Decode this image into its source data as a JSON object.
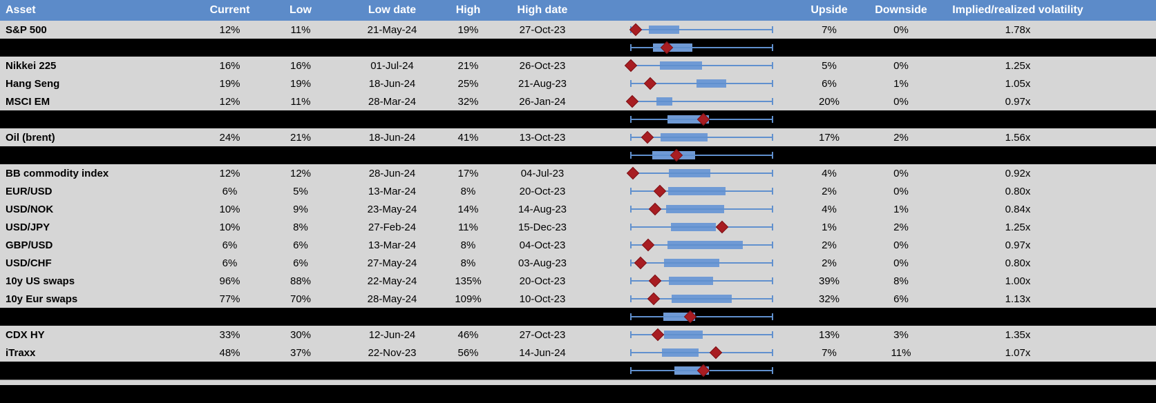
{
  "colors": {
    "header_bg": "#5C8BC9",
    "header_text": "#FFFFFF",
    "row_bg": "#D6D6D6",
    "separator_bg": "#000000",
    "box_fill": "#6F9AD5",
    "whisker": "#6090CE",
    "marker": "#A81D22",
    "text": "#000000"
  },
  "table": {
    "headers": {
      "asset": "Asset",
      "current": "Current",
      "low": "Low",
      "low_date": "Low date",
      "high": "High",
      "high_date": "High date",
      "chart": "",
      "upside": "Upside",
      "downside": "Downside",
      "implied_realized_vol": "Implied/realized volatility"
    },
    "rows": [
      {
        "type": "data",
        "asset": "S&P 500",
        "current": "12%",
        "low": "11%",
        "low_date": "21-May-24",
        "high": "19%",
        "high_date": "27-Oct-23",
        "upside": "7%",
        "downside": "0%",
        "implied_realized_vol": "1.78x"
      },
      {
        "type": "separator",
        "asset": "",
        "current": "",
        "low": "",
        "low_date": "",
        "high": "",
        "high_date": "",
        "upside": "",
        "downside": "",
        "implied_realized_vol": ""
      },
      {
        "type": "data",
        "asset": "Nikkei 225",
        "current": "16%",
        "low": "16%",
        "low_date": "01-Jul-24",
        "high": "21%",
        "high_date": "26-Oct-23",
        "upside": "5%",
        "downside": "0%",
        "implied_realized_vol": "1.25x"
      },
      {
        "type": "data",
        "asset": "Hang Seng",
        "current": "19%",
        "low": "19%",
        "low_date": "18-Jun-24",
        "high": "25%",
        "high_date": "21-Aug-23",
        "upside": "6%",
        "downside": "1%",
        "implied_realized_vol": "1.05x"
      },
      {
        "type": "data",
        "asset": "MSCI EM",
        "current": "12%",
        "low": "11%",
        "low_date": "28-Mar-24",
        "high": "32%",
        "high_date": "26-Jan-24",
        "upside": "20%",
        "downside": "0%",
        "implied_realized_vol": "0.97x"
      },
      {
        "type": "separator",
        "asset": "",
        "current": "",
        "low": "",
        "low_date": "",
        "high": "",
        "high_date": "",
        "upside": "",
        "downside": "",
        "implied_realized_vol": ""
      },
      {
        "type": "data",
        "asset": "Oil (brent)",
        "current": "24%",
        "low": "21%",
        "low_date": "18-Jun-24",
        "high": "41%",
        "high_date": "13-Oct-23",
        "upside": "17%",
        "downside": "2%",
        "implied_realized_vol": "1.56x"
      },
      {
        "type": "separator",
        "asset": "",
        "current": "",
        "low": "",
        "low_date": "",
        "high": "",
        "high_date": "",
        "upside": "",
        "downside": "",
        "implied_realized_vol": ""
      },
      {
        "type": "data",
        "asset": "BB commodity index",
        "current": "12%",
        "low": "12%",
        "low_date": "28-Jun-24",
        "high": "17%",
        "high_date": "04-Jul-23",
        "upside": "4%",
        "downside": "0%",
        "implied_realized_vol": "0.92x"
      },
      {
        "type": "data",
        "asset": "EUR/USD",
        "current": "6%",
        "low": "5%",
        "low_date": "13-Mar-24",
        "high": "8%",
        "high_date": "20-Oct-23",
        "upside": "2%",
        "downside": "0%",
        "implied_realized_vol": "0.80x"
      },
      {
        "type": "data",
        "asset": "USD/NOK",
        "current": "10%",
        "low": "9%",
        "low_date": "23-May-24",
        "high": "14%",
        "high_date": "14-Aug-23",
        "upside": "4%",
        "downside": "1%",
        "implied_realized_vol": "0.84x"
      },
      {
        "type": "data",
        "asset": "USD/JPY",
        "current": "10%",
        "low": "8%",
        "low_date": "27-Feb-24",
        "high": "11%",
        "high_date": "15-Dec-23",
        "upside": "1%",
        "downside": "2%",
        "implied_realized_vol": "1.25x"
      },
      {
        "type": "data",
        "asset": "GBP/USD",
        "current": "6%",
        "low": "6%",
        "low_date": "13-Mar-24",
        "high": "8%",
        "high_date": "04-Oct-23",
        "upside": "2%",
        "downside": "0%",
        "implied_realized_vol": "0.97x"
      },
      {
        "type": "data",
        "asset": "USD/CHF",
        "current": "6%",
        "low": "6%",
        "low_date": "27-May-24",
        "high": "8%",
        "high_date": "03-Aug-23",
        "upside": "2%",
        "downside": "0%",
        "implied_realized_vol": "0.80x"
      },
      {
        "type": "data",
        "asset": "10y US swaps",
        "current": "96%",
        "low": "88%",
        "low_date": "22-May-24",
        "high": "135%",
        "high_date": "20-Oct-23",
        "upside": "39%",
        "downside": "8%",
        "implied_realized_vol": "1.00x"
      },
      {
        "type": "data",
        "asset": "10y Eur swaps",
        "current": "77%",
        "low": "70%",
        "low_date": "28-May-24",
        "high": "109%",
        "high_date": "10-Oct-23",
        "upside": "32%",
        "downside": "6%",
        "implied_realized_vol": "1.13x"
      },
      {
        "type": "separator",
        "asset": "",
        "current": "",
        "low": "",
        "low_date": "",
        "high": "",
        "high_date": "",
        "upside": "",
        "downside": "",
        "implied_realized_vol": ""
      },
      {
        "type": "data",
        "asset": "CDX HY",
        "current": "33%",
        "low": "30%",
        "low_date": "12-Jun-24",
        "high": "46%",
        "high_date": "27-Oct-23",
        "upside": "13%",
        "downside": "3%",
        "implied_realized_vol": "1.35x"
      },
      {
        "type": "data",
        "asset": "iTraxx",
        "current": "48%",
        "low": "37%",
        "low_date": "22-Nov-23",
        "high": "56%",
        "high_date": "14-Jun-24",
        "upside": "7%",
        "downside": "11%",
        "implied_realized_vol": "1.07x"
      },
      {
        "type": "separator",
        "asset": "",
        "current": "",
        "low": "",
        "low_date": "",
        "high": "",
        "high_date": "",
        "upside": "",
        "downside": "",
        "implied_realized_vol": ""
      }
    ]
  },
  "chart_data": {
    "type": "boxplot",
    "orientation": "horizontal",
    "x_range": [
      0,
      1
    ],
    "grid": false,
    "legend": "none",
    "note": "One normalized box plot per table row: whisker spans the period low(0) to high(1), blue box = middle range of the period, red diamond = current implied volatility position within the low-high range. Black rows are unlabeled aggregate rows.",
    "rows": [
      {
        "label": "S&P 500",
        "whisker": [
          0,
          1
        ],
        "box": [
          0.127,
          0.341
        ],
        "marker": 0.034
      },
      {
        "label": "aggregate",
        "whisker": [
          0,
          1
        ],
        "box": [
          0.156,
          0.434
        ],
        "marker": 0.254
      },
      {
        "label": "Nikkei 225",
        "whisker": [
          0,
          1
        ],
        "box": [
          0.205,
          0.502
        ],
        "marker": 0.0
      },
      {
        "label": "Hang Seng",
        "whisker": [
          0,
          1
        ],
        "box": [
          0.463,
          0.673
        ],
        "marker": 0.137
      },
      {
        "label": "MSCI EM",
        "whisker": [
          0,
          1
        ],
        "box": [
          0.18,
          0.293
        ],
        "marker": 0.01
      },
      {
        "label": "aggregate",
        "whisker": [
          0,
          1
        ],
        "box": [
          0.259,
          0.551
        ],
        "marker": 0.512
      },
      {
        "label": "Oil (brent)",
        "whisker": [
          0,
          1
        ],
        "box": [
          0.21,
          0.541
        ],
        "marker": 0.117
      },
      {
        "label": "aggregate",
        "whisker": [
          0,
          1
        ],
        "box": [
          0.151,
          0.454
        ],
        "marker": 0.322
      },
      {
        "label": "BB commodity index",
        "whisker": [
          0,
          1
        ],
        "box": [
          0.268,
          0.561
        ],
        "marker": 0.015
      },
      {
        "label": "EUR/USD",
        "whisker": [
          0,
          1
        ],
        "box": [
          0.263,
          0.668
        ],
        "marker": 0.205
      },
      {
        "label": "USD/NOK",
        "whisker": [
          0,
          1
        ],
        "box": [
          0.249,
          0.659
        ],
        "marker": 0.171
      },
      {
        "label": "USD/JPY",
        "whisker": [
          0,
          1
        ],
        "box": [
          0.283,
          0.6
        ],
        "marker": 0.644
      },
      {
        "label": "GBP/USD",
        "whisker": [
          0,
          1
        ],
        "box": [
          0.259,
          0.79
        ],
        "marker": 0.122
      },
      {
        "label": "USD/CHF",
        "whisker": [
          0,
          1
        ],
        "box": [
          0.234,
          0.624
        ],
        "marker": 0.068
      },
      {
        "label": "10y US swaps",
        "whisker": [
          0,
          1
        ],
        "box": [
          0.268,
          0.58
        ],
        "marker": 0.171
      },
      {
        "label": "10y Eur swaps",
        "whisker": [
          0,
          1
        ],
        "box": [
          0.288,
          0.712
        ],
        "marker": 0.161
      },
      {
        "label": "aggregate",
        "whisker": [
          0,
          1
        ],
        "box": [
          0.229,
          0.454
        ],
        "marker": 0.42
      },
      {
        "label": "CDX HY",
        "whisker": [
          0,
          1
        ],
        "box": [
          0.234,
          0.507
        ],
        "marker": 0.19
      },
      {
        "label": "iTraxx",
        "whisker": [
          0,
          1
        ],
        "box": [
          0.22,
          0.478
        ],
        "marker": 0.6
      },
      {
        "label": "aggregate",
        "whisker": [
          0,
          1
        ],
        "box": [
          0.307,
          0.551
        ],
        "marker": 0.512
      }
    ]
  }
}
